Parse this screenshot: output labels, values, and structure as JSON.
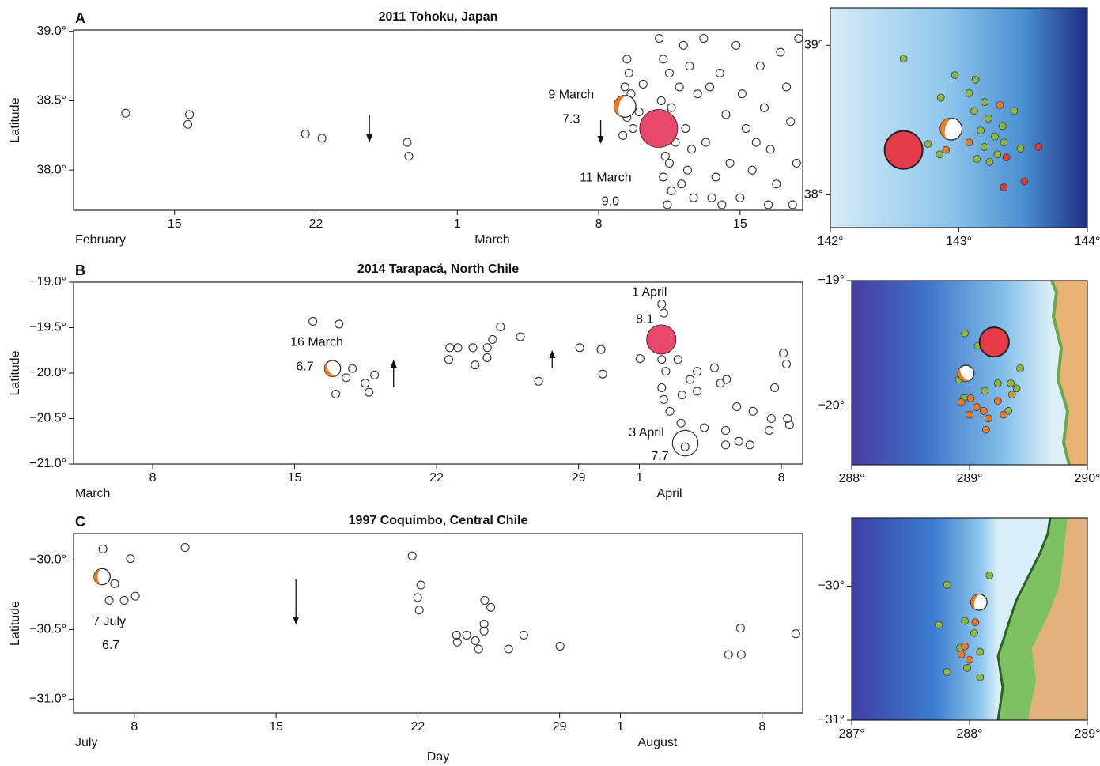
{
  "chart_data": [
    {
      "type": "scatter",
      "panel": "A",
      "title": "2011 Tohoku, Japan",
      "y_label": "Latitude",
      "xlim": [
        10,
        46.1
      ],
      "ylim": [
        37.71,
        39.01
      ],
      "xticks": [
        15,
        22,
        {
          "value": 29,
          "label": "1"
        },
        {
          "value": 36,
          "label": "8"
        },
        {
          "value": 43,
          "label": "15"
        }
      ],
      "yticks": [
        {
          "value": 38,
          "label": "38.0°"
        },
        {
          "value": 38.5,
          "label": "38.5°"
        },
        {
          "value": 39,
          "label": "39.0°"
        }
      ],
      "month_labels": [
        "February",
        "March"
      ],
      "x": [
        12.58,
        15.74,
        15.66,
        21.48,
        22.3,
        26.52,
        26.6,
        37.4,
        37.5,
        37.3,
        37.6,
        37.4,
        37.2,
        37.7,
        38.0,
        38.2,
        38.3,
        39.0,
        39.2,
        39.5,
        39.1,
        39.6,
        39.3,
        39.5,
        39.2,
        39.6,
        39.4,
        39.8,
        40.0,
        40.2,
        40.5,
        40.3,
        40.6,
        40.1,
        40.7,
        40.4,
        40.9,
        41.2,
        41.5,
        41.3,
        41.8,
        41.6,
        42.0,
        42.3,
        42.5,
        42.8,
        43.1,
        43.3,
        43.6,
        43.0,
        44.0,
        44.2,
        44.5,
        44.8,
        45.0,
        45.3,
        45.5,
        45.8,
        45.9,
        44.4,
        45.6,
        42.1,
        43.8
      ],
      "values": [
        38.41,
        38.4,
        38.33,
        38.26,
        38.23,
        38.2,
        38.1,
        38.8,
        38.7,
        38.6,
        38.55,
        38.38,
        38.25,
        38.3,
        38.42,
        38.62,
        38.28,
        38.95,
        38.8,
        38.7,
        38.5,
        38.45,
        38.1,
        38.05,
        37.95,
        37.85,
        37.75,
        38.2,
        38.6,
        38.9,
        38.75,
        38.3,
        38.15,
        37.9,
        37.8,
        38.0,
        38.55,
        38.95,
        38.6,
        38.2,
        37.95,
        37.8,
        38.7,
        38.4,
        38.05,
        38.9,
        38.55,
        38.3,
        38.0,
        37.8,
        38.75,
        38.45,
        38.15,
        37.9,
        38.85,
        38.6,
        38.35,
        38.05,
        38.95,
        37.75,
        37.75,
        37.75,
        38.2
      ],
      "events": [
        {
          "kind": "foreshock",
          "date": "9 March",
          "x": 37.3,
          "y": 38.46,
          "magnitude": 7.3,
          "magnitude_label": "7.3"
        },
        {
          "kind": "mainshock",
          "date": "11 March",
          "x": 38.97,
          "y": 38.3,
          "magnitude": 9,
          "magnitude_label": "9.0"
        }
      ],
      "arrows": [
        {
          "x": 24.65,
          "direction": "down"
        },
        {
          "x": 36.1,
          "direction": "down"
        }
      ]
    },
    {
      "type": "scatter",
      "panel": "B",
      "title": "2014 Tarapacá, North Chile",
      "y_label": "Latitude",
      "xlim": [
        4.1,
        40.05
      ],
      "ylim": [
        -21,
        -19
      ],
      "xticks": [
        8,
        15,
        22,
        29,
        {
          "value": 32,
          "label": "1"
        },
        {
          "value": 39,
          "label": "8"
        }
      ],
      "yticks": [
        {
          "value": -21,
          "label": "−21.0°"
        },
        {
          "value": -20.5,
          "label": "−20.5°"
        },
        {
          "value": -20,
          "label": "−20.0°"
        },
        {
          "value": -19.5,
          "label": "−19.5°"
        },
        {
          "value": -19,
          "label": "−19.0°"
        }
      ],
      "month_labels": [
        "March",
        "April"
      ],
      "x": [
        15.9,
        17.19,
        17.03,
        18.48,
        18.67,
        18.94,
        17.85,
        17.54,
        22.65,
        22.6,
        23.05,
        23.79,
        23.9,
        24.49,
        24.5,
        24.76,
        25.15,
        26.13,
        27.03,
        29.06,
        30.11,
        30.19,
        32.03,
        33.1,
        33.2,
        33.1,
        33.3,
        33.1,
        33.2,
        33.5,
        34.1,
        34.5,
        34.85,
        34.05,
        34.25,
        35.2,
        35.7,
        36.0,
        36.3,
        36.8,
        36.25,
        36.25,
        36.9,
        37.45,
        37.6,
        38.4,
        38.5,
        38.67,
        39.1,
        39.25,
        39.3,
        39.4,
        34.85,
        33.9
      ],
      "values": [
        -19.43,
        -19.46,
        -20.23,
        -20.11,
        -20.21,
        -20.02,
        -19.95,
        -20.05,
        -19.72,
        -19.85,
        -19.72,
        -19.72,
        -19.91,
        -19.83,
        -19.72,
        -19.63,
        -19.49,
        -19.6,
        -20.09,
        -19.72,
        -19.74,
        -20.01,
        -19.84,
        -19.24,
        -19.34,
        -19.85,
        -19.98,
        -20.16,
        -20.29,
        -20.42,
        -20.24,
        -20.07,
        -20.2,
        -20.55,
        -20.81,
        -20.6,
        -19.94,
        -20.11,
        -20.07,
        -20.37,
        -20.63,
        -20.79,
        -20.75,
        -20.79,
        -20.42,
        -20.63,
        -20.5,
        -20.16,
        -19.78,
        -19.9,
        -20.5,
        -20.57,
        -19.98,
        -19.85
      ],
      "events": [
        {
          "kind": "foreshock",
          "date": "16 March",
          "x": 16.87,
          "y": -19.95,
          "magnitude": 6.7,
          "magnitude_label": "6.7"
        },
        {
          "kind": "mainshock",
          "date": "1 April",
          "x": 33.08,
          "y": -19.63,
          "magnitude": 8.1,
          "magnitude_label": "8.1"
        },
        {
          "kind": "aftershock",
          "date": "3 April",
          "x": 34.26,
          "y": -20.77,
          "magnitude": 7.7,
          "magnitude_label": "7.7"
        }
      ],
      "arrows": [
        {
          "x": 19.88,
          "direction": "up"
        },
        {
          "x": 27.7,
          "direction": "up"
        }
      ]
    },
    {
      "type": "scatter",
      "panel": "C",
      "title": "1997 Coquimbo, Central Chile",
      "y_label": "Latitude",
      "x_label": "Day",
      "xlim": [
        5,
        41
      ],
      "ylim": [
        -31.1,
        -29.81
      ],
      "xticks": [
        8,
        15,
        22,
        29,
        {
          "value": 32,
          "label": "1"
        },
        {
          "value": 39,
          "label": "8"
        }
      ],
      "yticks": [
        {
          "value": -31,
          "label": "−31.0°"
        },
        {
          "value": -30.5,
          "label": "−30.5°"
        },
        {
          "value": -30,
          "label": "−30.0°"
        }
      ],
      "month_labels": [
        "July",
        "August"
      ],
      "x": [
        6.45,
        7.81,
        10.51,
        6.76,
        7.5,
        8.05,
        7.03,
        21.72,
        22.15,
        21.99,
        22.07,
        23.91,
        23.95,
        24.41,
        24.84,
        25.0,
        25.3,
        25.6,
        25.27,
        25.27,
        26.48,
        27.23,
        29.02,
        37.34,
        37.93,
        37.97,
        40.66
      ],
      "values": [
        -29.92,
        -29.99,
        -29.91,
        -30.29,
        -30.29,
        -30.26,
        -30.17,
        -29.97,
        -30.18,
        -30.27,
        -30.36,
        -30.54,
        -30.59,
        -30.54,
        -30.58,
        -30.64,
        -30.29,
        -30.34,
        -30.46,
        -30.51,
        -30.64,
        -30.54,
        -30.62,
        -30.68,
        -30.49,
        -30.68,
        -30.53
      ],
      "events": [
        {
          "kind": "foreshock",
          "date": "7 July",
          "x": 6.41,
          "y": -30.12,
          "magnitude": 6.7,
          "magnitude_label": "6.7"
        }
      ],
      "arrows": [
        {
          "x": 15.98,
          "direction": "down"
        }
      ]
    },
    {
      "type": "map",
      "xlim": [
        142,
        144
      ],
      "ylim": [
        37.78,
        39.25
      ],
      "xticks": [
        {
          "value": 142,
          "label": "142°"
        },
        {
          "value": 143,
          "label": "143°"
        },
        {
          "value": 144,
          "label": "144°"
        }
      ],
      "yticks": [
        {
          "value": 38,
          "label": "38°"
        },
        {
          "value": 39,
          "label": "39°"
        }
      ],
      "series": [
        {
          "color": "#8db645",
          "x": [
            142.57,
            142.97,
            142.86,
            143.13,
            143.08,
            143.2,
            143.12,
            143.23,
            143.17,
            143.28,
            143.34,
            143.43,
            143.2,
            143.3,
            143.14,
            143.48,
            142.76,
            142.85,
            143.24,
            143.35
          ],
          "values": [
            38.91,
            38.8,
            38.65,
            38.77,
            38.68,
            38.62,
            38.56,
            38.51,
            38.43,
            38.39,
            38.46,
            38.56,
            38.32,
            38.27,
            38.24,
            38.31,
            38.34,
            38.27,
            38.22,
            38.35
          ]
        },
        {
          "color": "#e8782b",
          "x": [
            143.32,
            142.9,
            143.08
          ],
          "values": [
            38.6,
            38.3,
            38.35
          ]
        },
        {
          "color": "#e0393e",
          "x": [
            143.62,
            143.51,
            143.35,
            143.37
          ],
          "values": [
            38.32,
            38.09,
            38.05,
            38.25
          ]
        }
      ],
      "events": [
        {
          "kind": "mainshock",
          "x": 142.57,
          "y": 38.3,
          "magnitude": 9
        },
        {
          "kind": "foreshock",
          "x": 142.94,
          "y": 38.44,
          "magnitude": 7.3
        }
      ]
    },
    {
      "type": "map",
      "xlim": [
        288,
        290
      ],
      "ylim": [
        -20.47,
        -19
      ],
      "xticks": [
        {
          "value": 288,
          "label": "288°"
        },
        {
          "value": 289,
          "label": "289°"
        },
        {
          "value": 290,
          "label": "290°"
        }
      ],
      "yticks": [
        {
          "value": -20,
          "label": "−20°"
        },
        {
          "value": -19,
          "label": "−19°"
        }
      ],
      "series": [
        {
          "color": "#8db645",
          "x": [
            288.96,
            289.07,
            289.43,
            289.35,
            288.91,
            289.13,
            289.24,
            289.4,
            288.95,
            289.33
          ],
          "values": [
            -19.42,
            -19.52,
            -19.7,
            -19.82,
            -19.79,
            -19.88,
            -19.82,
            -19.86,
            -19.94,
            -20.04
          ]
        },
        {
          "color": "#e8782b",
          "x": [
            289.01,
            289.06,
            289.12,
            289.24,
            289.16,
            289.14,
            289.29,
            288.93,
            289.0
          ],
          "values": [
            -19.94,
            -20.01,
            -20.04,
            -19.96,
            -20.1,
            -20.19,
            -20.07,
            -19.97,
            -20.07
          ]
        },
        {
          "color": "#b5a33a",
          "x": [
            289.36
          ],
          "values": [
            -19.91
          ]
        }
      ],
      "events": [
        {
          "kind": "mainshock",
          "x": 289.21,
          "y": -19.49,
          "magnitude": 8.1
        },
        {
          "kind": "foreshock",
          "x": 288.97,
          "y": -19.74,
          "magnitude": 6.7
        }
      ]
    },
    {
      "type": "map",
      "xlim": [
        287,
        289
      ],
      "ylim": [
        -31,
        -29.49
      ],
      "xticks": [
        {
          "value": 287,
          "label": "287°"
        },
        {
          "value": 288,
          "label": "288°"
        },
        {
          "value": 289,
          "label": "289°"
        }
      ],
      "yticks": [
        {
          "value": -31,
          "label": "−31°"
        },
        {
          "value": -30,
          "label": "−30°"
        }
      ],
      "series": [
        {
          "color": "#8db645",
          "x": [
            287.81,
            288.17,
            287.74,
            287.96,
            288.04,
            287.92,
            288.09,
            287.81,
            287.98,
            288.09
          ],
          "values": [
            -29.99,
            -29.92,
            -30.29,
            -30.26,
            -30.35,
            -30.46,
            -30.49,
            -30.64,
            -30.61,
            -30.68
          ]
        },
        {
          "color": "#e8782b",
          "x": [
            288.05,
            287.96,
            287.93,
            288.0
          ],
          "values": [
            -30.27,
            -30.45,
            -30.51,
            -30.55
          ]
        }
      ],
      "events": [
        {
          "kind": "foreshock",
          "x": 288.08,
          "y": -30.12,
          "magnitude": 6.7
        }
      ]
    }
  ]
}
